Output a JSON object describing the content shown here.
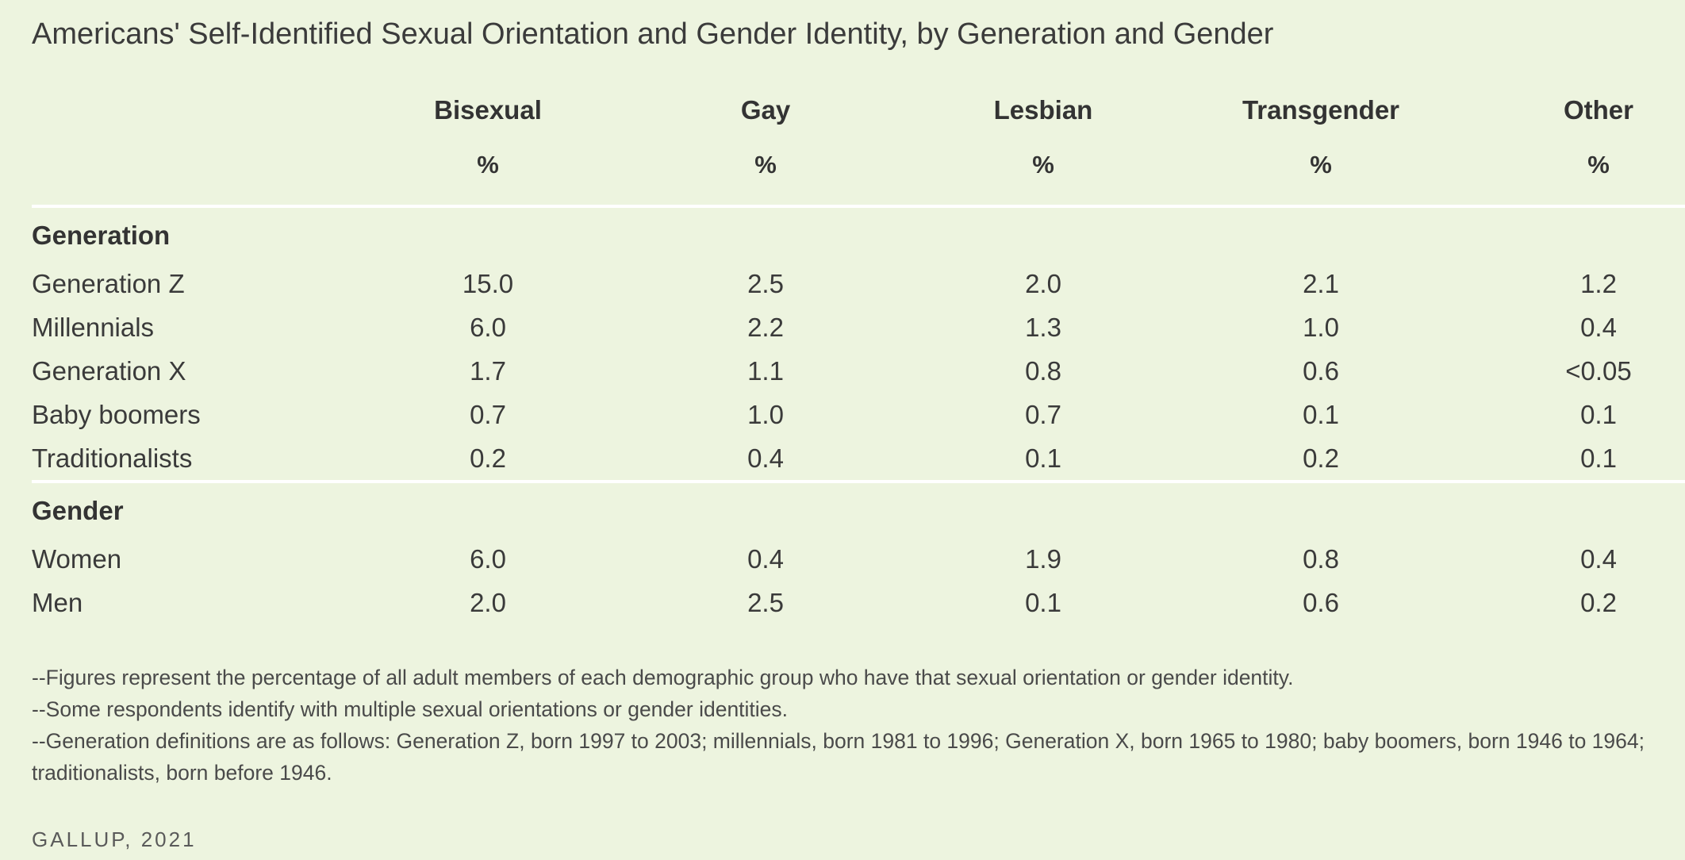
{
  "title": "Americans' Self-Identified Sexual Orientation and Gender Identity, by Generation and Gender",
  "chart_data": {
    "type": "table",
    "columns": [
      {
        "name": "Bisexual",
        "unit": "%"
      },
      {
        "name": "Gay",
        "unit": "%"
      },
      {
        "name": "Lesbian",
        "unit": "%"
      },
      {
        "name": "Transgender",
        "unit": "%"
      },
      {
        "name": "Other",
        "unit": "%"
      }
    ],
    "groups": [
      {
        "name": "Generation",
        "rows": [
          {
            "label": "Generation Z",
            "values": [
              "15.0",
              "2.5",
              "2.0",
              "2.1",
              "1.2"
            ]
          },
          {
            "label": "Millennials",
            "values": [
              "6.0",
              "2.2",
              "1.3",
              "1.0",
              "0.4"
            ]
          },
          {
            "label": "Generation X",
            "values": [
              "1.7",
              "1.1",
              "0.8",
              "0.6",
              "<0.05"
            ]
          },
          {
            "label": "Baby boomers",
            "values": [
              "0.7",
              "1.0",
              "0.7",
              "0.1",
              "0.1"
            ]
          },
          {
            "label": "Traditionalists",
            "values": [
              "0.2",
              "0.4",
              "0.1",
              "0.2",
              "0.1"
            ]
          }
        ]
      },
      {
        "name": "Gender",
        "rows": [
          {
            "label": "Women",
            "values": [
              "6.0",
              "0.4",
              "1.9",
              "0.8",
              "0.4"
            ]
          },
          {
            "label": "Men",
            "values": [
              "2.0",
              "2.5",
              "0.1",
              "0.6",
              "0.2"
            ]
          }
        ]
      }
    ]
  },
  "notes": [
    "--Figures represent the percentage of all adult members of each demographic group who have that sexual orientation or gender identity.",
    "--Some respondents identify with multiple sexual orientations or gender identities.",
    "--Generation definitions are as follows: Generation Z, born 1997 to 2003; millennials, born 1981 to 1996; Generation X, born 1965 to 1980; baby boomers, born 1946 to 1964; traditionalists, born before 1946."
  ],
  "source": "GALLUP, 2021",
  "colors": {
    "background": "#edf4df",
    "rule": "#ffffff",
    "text": "#3a3a3a"
  }
}
